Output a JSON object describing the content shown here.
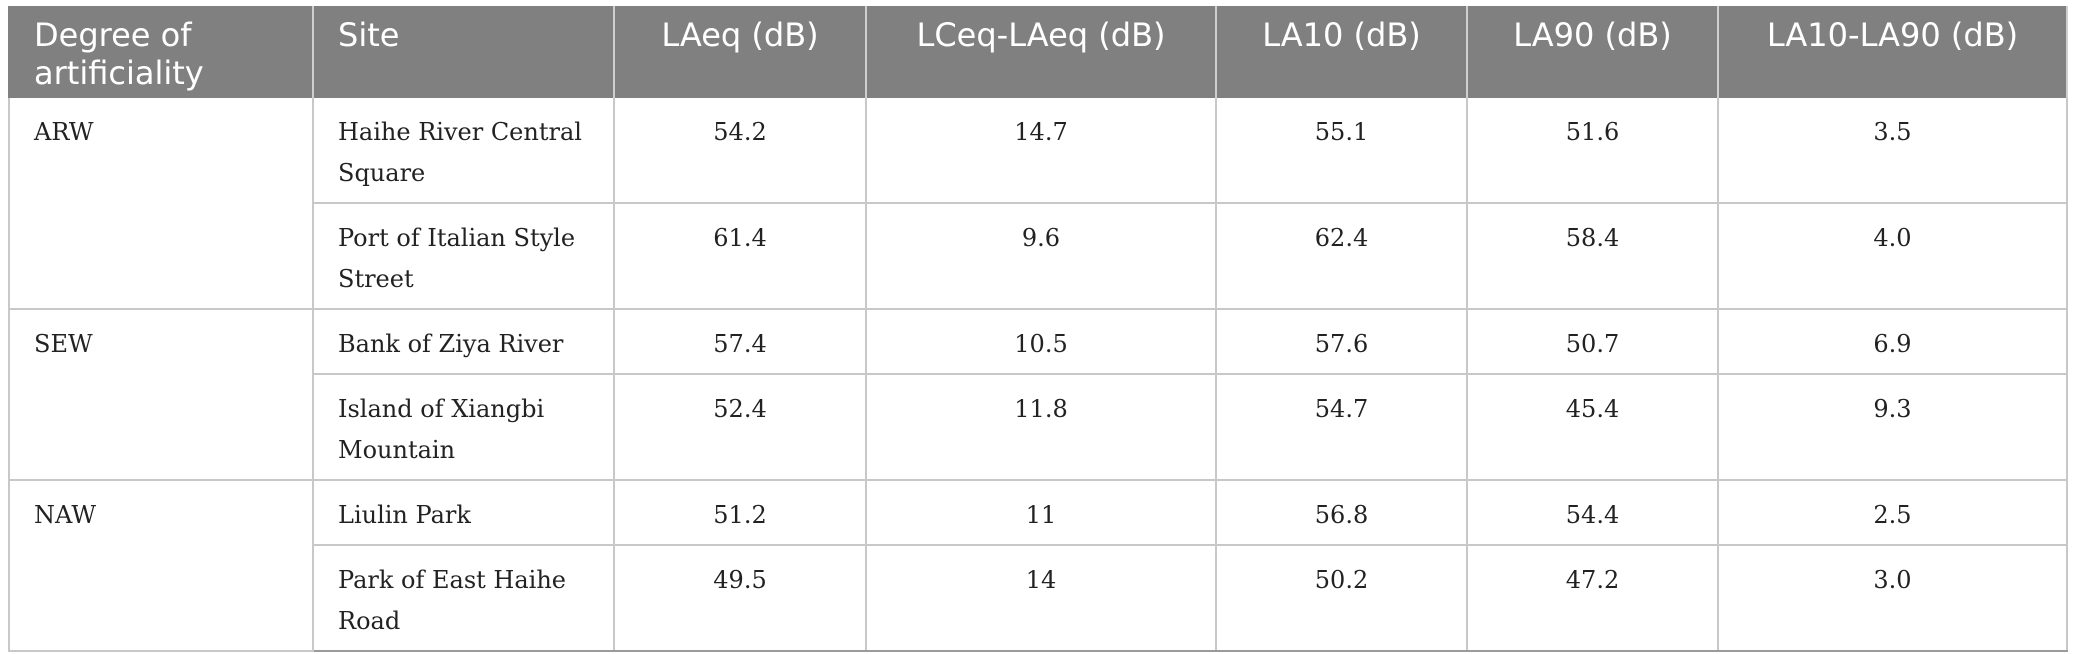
{
  "table": {
    "headers": [
      "Degree of artificiality",
      "Site",
      "LAeq (dB)",
      "LCeq-LAeq (dB)",
      "LA10 (dB)",
      "LA90 (dB)",
      "LA10-LA90 (dB)"
    ],
    "groups": [
      {
        "label": "ARW",
        "rows": [
          {
            "site": "Haihe River Central Square",
            "laeq": "54.2",
            "lceq_laeq": "14.7",
            "la10": "55.1",
            "la90": "51.6",
            "la10_la90": "3.5"
          },
          {
            "site": "Port of Italian Style Street",
            "laeq": "61.4",
            "lceq_laeq": "9.6",
            "la10": "62.4",
            "la90": "58.4",
            "la10_la90": "4.0"
          }
        ]
      },
      {
        "label": "SEW",
        "rows": [
          {
            "site": "Bank of Ziya River",
            "laeq": "57.4",
            "lceq_laeq": "10.5",
            "la10": "57.6",
            "la90": "50.7",
            "la10_la90": "6.9"
          },
          {
            "site": "Island of Xiangbi Mountain",
            "laeq": "52.4",
            "lceq_laeq": "11.8",
            "la10": "54.7",
            "la90": "45.4",
            "la10_la90": "9.3"
          }
        ]
      },
      {
        "label": "NAW",
        "rows": [
          {
            "site": "Liulin Park",
            "laeq": "51.2",
            "lceq_laeq": "11",
            "la10": "56.8",
            "la90": "54.4",
            "la10_la90": "2.5"
          },
          {
            "site": "Park of East Haihe Road",
            "laeq": "49.5",
            "lceq_laeq": "14",
            "la10": "50.2",
            "la90": "47.2",
            "la10_la90": "3.0"
          }
        ]
      }
    ]
  }
}
